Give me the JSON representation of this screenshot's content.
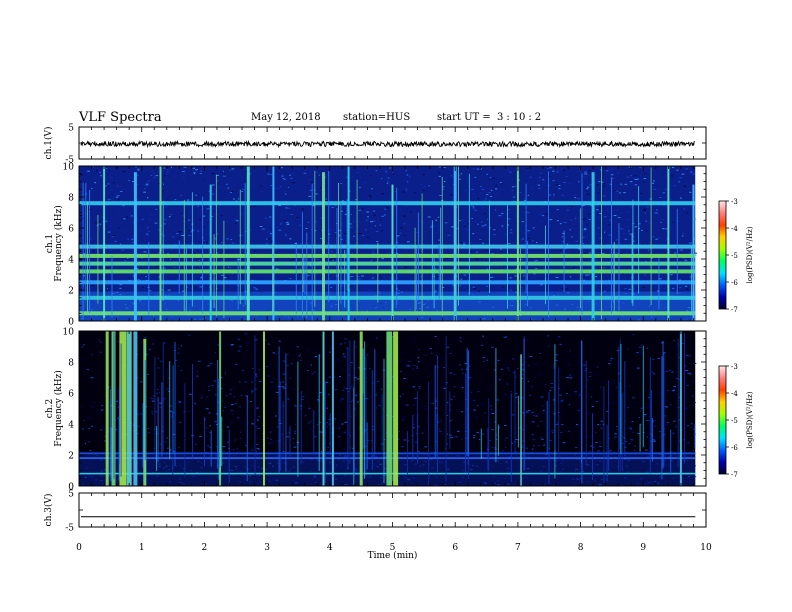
{
  "header": {
    "title": "VLF Spectra",
    "date": "May 12, 2018",
    "station_prefix": "station=",
    "station": "HUS",
    "start_prefix": "start  UT =",
    "start_h": "3",
    "start_sep1": ":",
    "start_m": "10",
    "start_sep2": ":",
    "start_s": "2"
  },
  "colorbar": {
    "label": "log(PSD)(V²/Hz)",
    "ticks": [
      "-3",
      "-4",
      "-5",
      "-6",
      "-7"
    ],
    "range": [
      -7,
      -3
    ],
    "stops": [
      "#000033",
      "#0000b0",
      "#0060ff",
      "#00e0ff",
      "#00ff60",
      "#a0ff00",
      "#ffd000",
      "#ff4000",
      "#ff8080",
      "#ffe8e8"
    ]
  },
  "chart_data": [
    {
      "type": "line",
      "name": "ch1-waveform",
      "ylabel": "ch.1(V)",
      "ylim": [
        -5,
        5
      ],
      "y_ticks": [
        "5",
        "-5"
      ],
      "level": 0.0
    },
    {
      "type": "heatmap",
      "name": "ch1-spectrogram",
      "ylabel_top": "ch.1",
      "ylabel": "Frequency (kHz)",
      "ylim": [
        0,
        10
      ],
      "y_ticks": [
        "0",
        "2",
        "4",
        "6",
        "8",
        "10"
      ],
      "tone_bands_khz": [
        0.5,
        1.5,
        2.5,
        3.2,
        3.7,
        4.2,
        4.8,
        7.6
      ],
      "broadband_bursts_min": [
        0.4,
        0.9,
        1.3,
        2.1,
        2.7,
        3.1,
        3.9,
        4.3,
        5.0,
        6.0,
        7.0,
        8.2,
        9.4,
        9.8
      ]
    },
    {
      "type": "heatmap",
      "name": "ch2-spectrogram",
      "ylabel_top": "ch.2",
      "ylabel": "Frequency (kHz)",
      "ylim": [
        0,
        10
      ],
      "y_ticks": [
        "0",
        "2",
        "4",
        "6",
        "8",
        "10"
      ],
      "tone_bands_khz": [
        0.8,
        1.8,
        2.1
      ],
      "broadband_bursts_min": [
        0.45,
        0.55,
        0.7,
        0.8,
        0.9,
        1.05,
        2.25,
        2.95,
        3.9,
        4.05,
        4.5,
        4.95,
        5.05,
        7.05,
        9.6
      ]
    },
    {
      "type": "line",
      "name": "ch3-waveform",
      "ylabel": "ch.3(V)",
      "ylim": [
        -5,
        5
      ],
      "y_ticks": [
        "5",
        "-5"
      ],
      "level": -2.0
    }
  ],
  "xaxis": {
    "label": "Time (min)",
    "xlim": [
      0,
      10
    ],
    "ticks": [
      "0",
      "1",
      "2",
      "3",
      "4",
      "5",
      "6",
      "7",
      "8",
      "9",
      "10"
    ]
  }
}
